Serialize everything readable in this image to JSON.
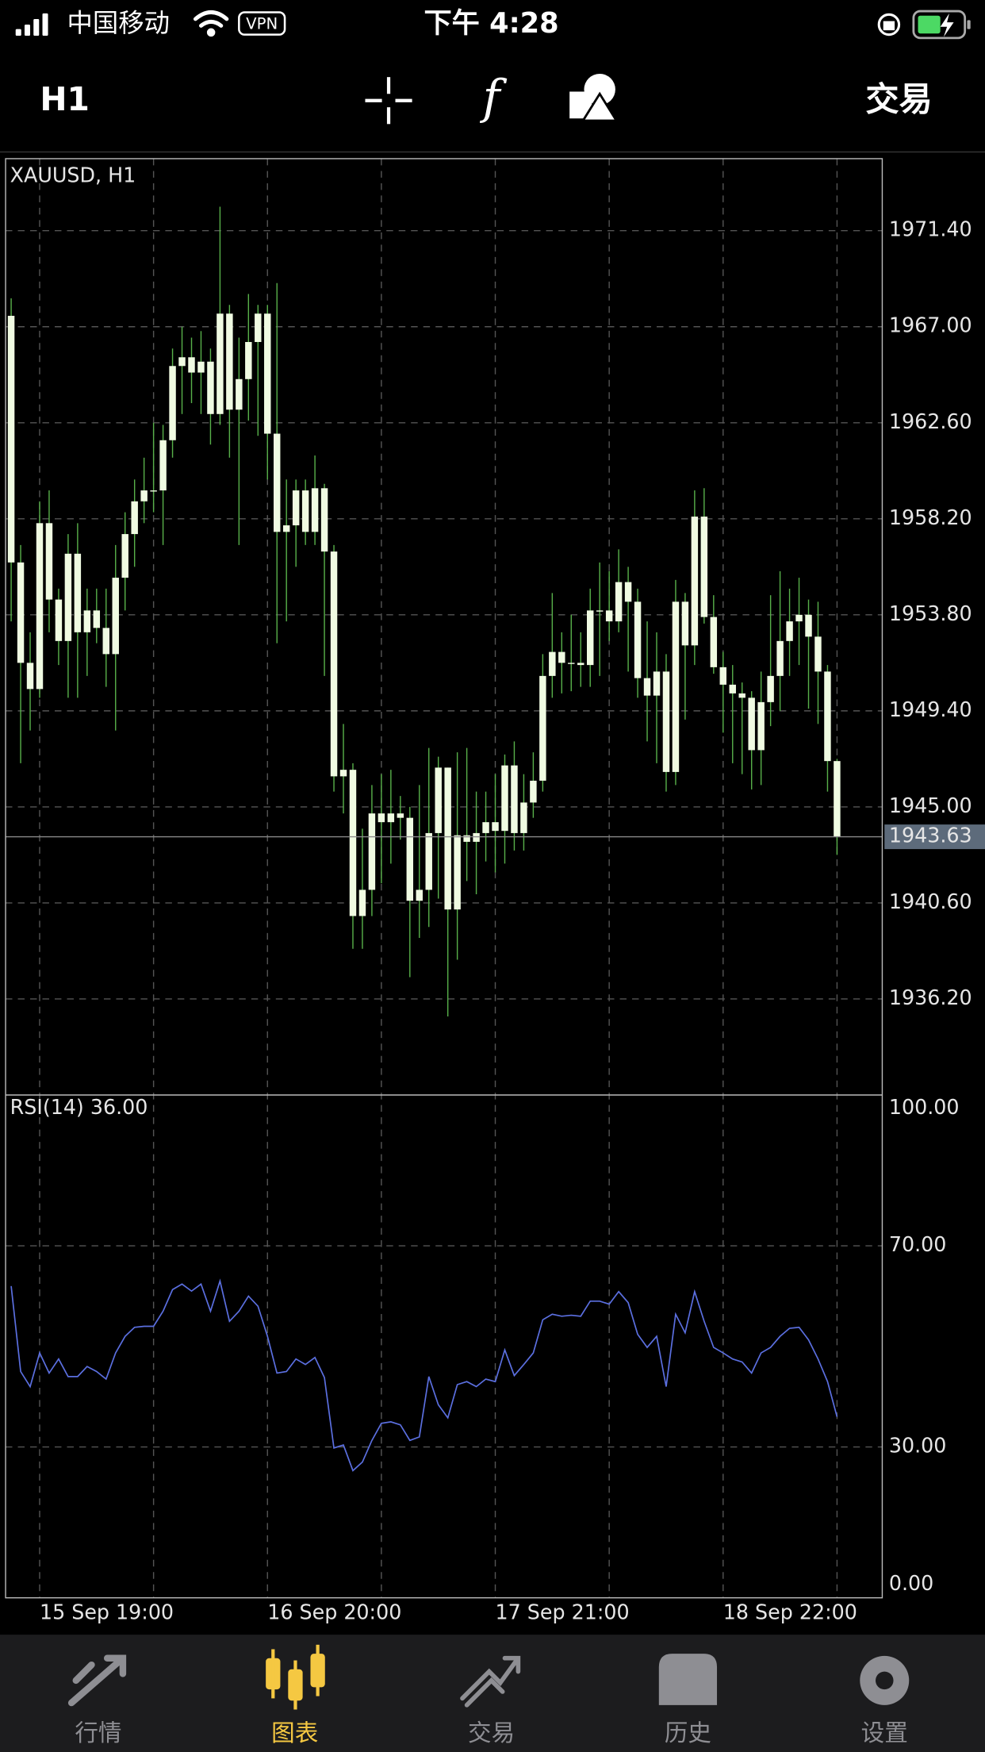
{
  "status_bar": {
    "carrier": "中国移动",
    "vpn": "VPN",
    "time": "下午 4:28"
  },
  "toolbar": {
    "timeframe": "H1",
    "trade": "交易"
  },
  "chart_data": [
    {
      "type": "candlestick",
      "title": "XAUUSD, H1",
      "categories": [
        null,
        null,
        null,
        "15 Sep 19:00",
        null,
        null,
        null,
        null,
        null,
        null,
        null,
        null,
        null,
        null,
        null,
        null,
        null,
        null,
        null,
        null,
        null,
        null,
        null,
        null,
        null,
        null,
        null,
        "16 Sep 20:00",
        null,
        null,
        null,
        null,
        null,
        null,
        null,
        null,
        null,
        null,
        null,
        null,
        null,
        null,
        null,
        null,
        null,
        null,
        null,
        null,
        null,
        null,
        null,
        "17 Sep 21:00",
        null,
        null,
        null,
        null,
        null,
        null,
        null,
        null,
        null,
        null,
        null,
        null,
        null,
        null,
        null,
        null,
        null,
        null,
        null,
        null,
        null,
        null,
        null,
        "18 Sep 22:00",
        null,
        null,
        null,
        null,
        null,
        null,
        null,
        null,
        null,
        null,
        null,
        null
      ],
      "open": [
        1967.5,
        1956.2,
        1951.6,
        1950.4,
        1958,
        1954.5,
        1952.6,
        1956.6,
        1953,
        1954,
        1953.2,
        1952,
        1955.5,
        1957.5,
        1959,
        1959.5,
        1959.5,
        1961.8,
        1965.2,
        1965.6,
        1964.9,
        1965.4,
        1963,
        1967.6,
        1963.2,
        1964.6,
        1966.3,
        1967.6,
        1962.1,
        1957.6,
        1957.9,
        1959.5,
        1957.6,
        1959.6,
        1956.7,
        1946.4,
        1946.7,
        1940,
        1941.2,
        1944.7,
        1944.3,
        1944.7,
        1944.5,
        1940.7,
        1941.2,
        1943.8,
        1946.8,
        1940.3,
        1943.7,
        1943.4,
        1943.8,
        1944.3,
        1943.9,
        1946.9,
        1943.8,
        1945.2,
        1946.2,
        1951,
        1952.1,
        1951.6,
        1951.6,
        1951.5,
        1954,
        1954,
        1953.5,
        1955.3,
        1954.4,
        1950.9,
        1950.1,
        1951.2,
        1946.6,
        1954.4,
        1952.4,
        1958.3,
        1953.7,
        1951.4,
        1950.6,
        1950.2,
        1950,
        1947.6,
        1949.8,
        1951,
        1952.6,
        1953.5,
        1953.8,
        1952.8,
        1951.2,
        1947.1
      ],
      "high": [
        1968.3,
        1957,
        1953,
        1959,
        1959.5,
        1955,
        1957.5,
        1958,
        1955,
        1955,
        1955,
        1957,
        1958.5,
        1960,
        1961,
        1962.6,
        1962.5,
        1966,
        1967,
        1966.5,
        1966.8,
        1966,
        1972.5,
        1968,
        1966.5,
        1968.5,
        1968,
        1968,
        1969,
        1960,
        1960,
        1960,
        1961.1,
        1959.8,
        1957,
        1948.8,
        1947,
        1944,
        1946,
        1946.5,
        1946.7,
        1945.5,
        1945,
        1946,
        1947.7,
        1947.3,
        1946.8,
        1947.5,
        1947.7,
        1945.7,
        1945.7,
        1946.5,
        1947.4,
        1948,
        1946.5,
        1947.5,
        1952,
        1954.8,
        1953,
        1953.8,
        1953,
        1955,
        1956.2,
        1955.8,
        1956.8,
        1956,
        1955,
        1953.5,
        1953,
        1952,
        1955.4,
        1954.8,
        1959.5,
        1959.6,
        1954.7,
        1952.1,
        1951.5,
        1950.7,
        1950.3,
        1951.2,
        1954.7,
        1955.8,
        1955,
        1955.5,
        1954.5,
        1954.4,
        1951.5,
        1947.2
      ],
      "low": [
        1953.5,
        1947,
        1948.5,
        1950,
        1953,
        1951.5,
        1950,
        1950,
        1951,
        1952.5,
        1950.5,
        1948.5,
        1954,
        1956,
        1958,
        1958.5,
        1957,
        1961,
        1963,
        1963.5,
        1963,
        1961.6,
        1962.5,
        1961,
        1957,
        1962.7,
        1962,
        1960,
        1952.5,
        1953.5,
        1956,
        1957,
        1957,
        1951,
        1945.7,
        1944.7,
        1938.5,
        1938.5,
        1940,
        1941.5,
        1942.4,
        1943.5,
        1937.2,
        1939,
        1939.5,
        1940.8,
        1935.4,
        1938,
        1941.6,
        1941,
        1942.5,
        1942,
        1942.4,
        1943,
        1943,
        1944.5,
        1945.7,
        1950,
        1950.2,
        1950.3,
        1950.5,
        1950.5,
        1951,
        1952.6,
        1953,
        1951.2,
        1950,
        1948,
        1947,
        1945.7,
        1946,
        1949,
        1951.5,
        1953.4,
        1951.1,
        1948.4,
        1947,
        1946.5,
        1945.8,
        1946,
        1948.7,
        1949.4,
        1951,
        1951.5,
        1949.5,
        1948.8,
        1945.7,
        1942.8
      ],
      "close": [
        1956.2,
        1951.6,
        1950.4,
        1958,
        1954.5,
        1952.6,
        1956.6,
        1953,
        1954,
        1953.2,
        1952,
        1955.5,
        1957.5,
        1959,
        1959.5,
        1959.5,
        1961.8,
        1965.2,
        1965.6,
        1964.9,
        1965.4,
        1963,
        1967.6,
        1963.2,
        1964.6,
        1966.3,
        1967.6,
        1962.1,
        1957.6,
        1957.9,
        1959.5,
        1957.6,
        1959.6,
        1956.7,
        1946.4,
        1946.7,
        1940,
        1941.2,
        1944.7,
        1944.3,
        1944.7,
        1944.5,
        1940.7,
        1941.2,
        1943.8,
        1946.8,
        1940.3,
        1943.7,
        1943.4,
        1943.8,
        1944.3,
        1943.9,
        1946.9,
        1943.8,
        1945.2,
        1946.2,
        1951,
        1952.1,
        1951.6,
        1951.6,
        1951.5,
        1954,
        1954,
        1953.5,
        1955.3,
        1954.4,
        1950.9,
        1950.1,
        1951.2,
        1946.6,
        1954.4,
        1952.4,
        1958.3,
        1953.7,
        1951.4,
        1950.6,
        1950.2,
        1950,
        1947.6,
        1949.8,
        1951,
        1952.6,
        1953.5,
        1953.8,
        1952.8,
        1951.2,
        1947.1,
        1943.63
      ],
      "body_color": "#f0fbe2",
      "wick_color": "#58b04a",
      "ylim": [
        1931.8,
        1974.7
      ],
      "yticks": [
        {
          "value": 1971.4,
          "label": "1971.40"
        },
        {
          "value": 1967,
          "label": "1967.00"
        },
        {
          "value": 1962.6,
          "label": "1962.60"
        },
        {
          "value": 1958.2,
          "label": "1958.20"
        },
        {
          "value": 1953.8,
          "label": "1953.80"
        },
        {
          "value": 1949.4,
          "label": "1949.40"
        },
        {
          "value": 1945,
          "label": "1945.00"
        },
        {
          "value": 1940.6,
          "label": "1940.60"
        },
        {
          "value": 1936.2,
          "label": "1936.20"
        }
      ],
      "last_price": 1943.63,
      "grid": true
    },
    {
      "type": "line",
      "title": "RSI(14) 36.00",
      "values": [
        62,
        45,
        42,
        48.7,
        44.7,
        47.5,
        44,
        44,
        46,
        45,
        43.5,
        48.7,
        52,
        53.8,
        54,
        54,
        57,
        61.3,
        62.4,
        61,
        62.4,
        57,
        63,
        55,
        57,
        60,
        58,
        52,
        44.7,
        45,
        47.5,
        46.4,
        47.8,
        43.8,
        29.8,
        30.4,
        25.3,
        27,
        31.3,
        34.7,
        35,
        34.4,
        31.3,
        32,
        44,
        38.4,
        35.8,
        42.4,
        43,
        42,
        43.5,
        43,
        49.3,
        44.2,
        46.4,
        48.7,
        55.3,
        56.4,
        56,
        56.2,
        56,
        59,
        59,
        58.4,
        60.9,
        58.7,
        52.4,
        49.8,
        52,
        42,
        56.4,
        52.7,
        60.9,
        55,
        49.8,
        48.7,
        47.5,
        46.9,
        44.7,
        48.7,
        49.8,
        52,
        53.6,
        53.8,
        51.3,
        47.5,
        43,
        36
      ],
      "color": "#5b6fe0",
      "ylim": [
        0,
        100
      ],
      "yticks": [
        {
          "value": 100,
          "label": "100.00"
        },
        {
          "value": 70,
          "label": "70.00"
        },
        {
          "value": 30,
          "label": "30.00"
        },
        {
          "value": 0,
          "label": "0.00"
        }
      ],
      "grid": true
    }
  ],
  "tab_bar": {
    "tabs": [
      {
        "label": "行情"
      },
      {
        "label": "图表"
      },
      {
        "label": "交易"
      },
      {
        "label": "历史"
      },
      {
        "label": "设置"
      }
    ],
    "active": 1
  }
}
